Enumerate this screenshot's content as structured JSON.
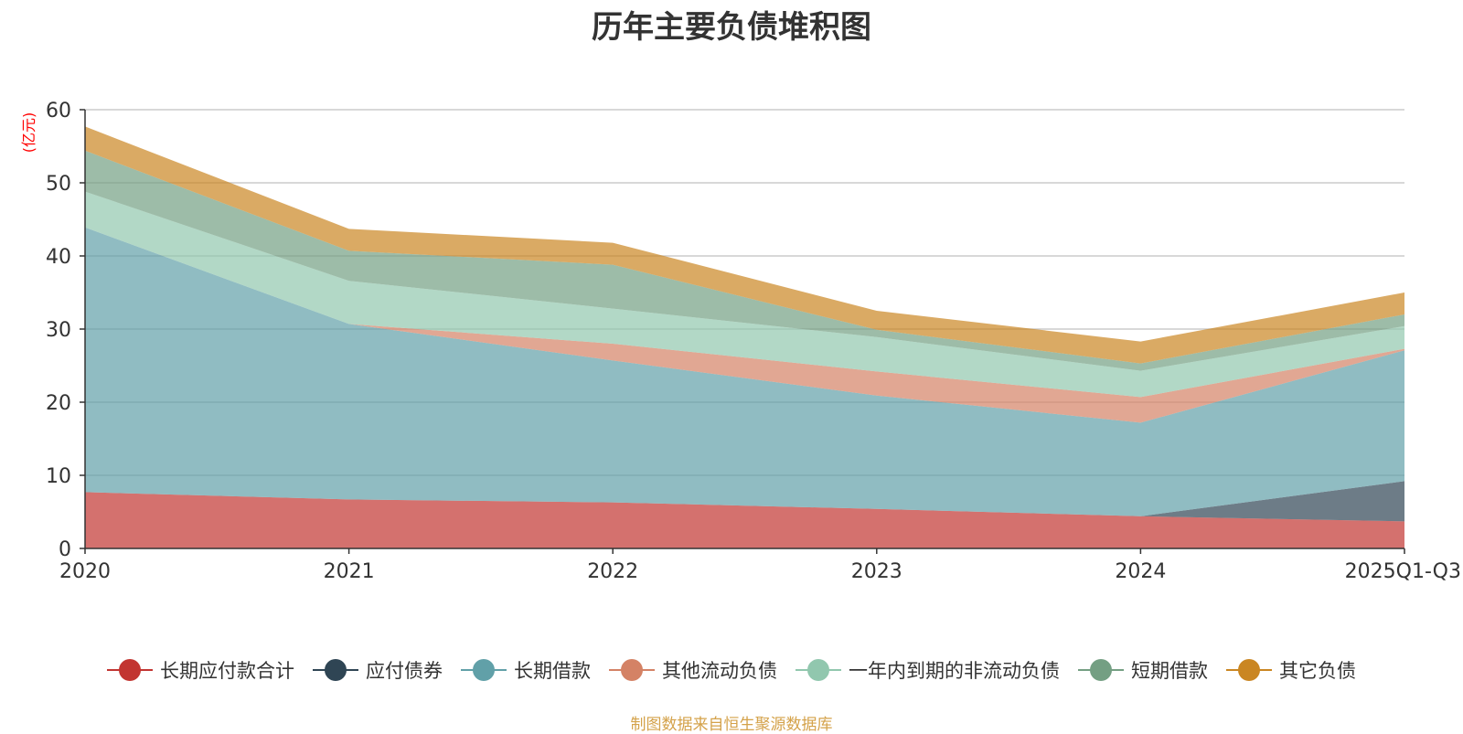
{
  "chart_data": {
    "type": "area",
    "stacked": true,
    "title": "历年主要负债堆积图",
    "ylabel": "(亿元)",
    "xlabel": "",
    "categories": [
      "2020",
      "2021",
      "2022",
      "2023",
      "2024",
      "2025Q1-Q3"
    ],
    "ylim": [
      0,
      60
    ],
    "yticks": [
      0,
      10,
      20,
      30,
      40,
      50,
      60
    ],
    "grid": true,
    "legend_position": "bottom",
    "series": [
      {
        "name": "长期应付款合计",
        "color": "#c23531",
        "values": [
          7.7,
          6.7,
          6.3,
          5.4,
          4.4,
          3.7
        ]
      },
      {
        "name": "应付债券",
        "color": "#2f4554",
        "values": [
          0,
          0,
          0,
          0,
          0,
          5.5
        ]
      },
      {
        "name": "长期借款",
        "color": "#61a0a8",
        "values": [
          36.2,
          24.0,
          19.4,
          15.5,
          12.8,
          17.9
        ]
      },
      {
        "name": "其他流动负债",
        "color": "#d48265",
        "values": [
          0,
          0,
          2.3,
          3.3,
          3.5,
          0.2
        ]
      },
      {
        "name": "一年内到期的非流动负债",
        "color": "#91c7ae",
        "values": [
          4.9,
          5.9,
          4.8,
          4.7,
          3.6,
          3.1
        ]
      },
      {
        "name": "短期借款",
        "color": "#749f83",
        "values": [
          5.6,
          4.1,
          6.0,
          1.0,
          1.0,
          1.6
        ]
      },
      {
        "name": "其它负债",
        "color": "#ca8622",
        "values": [
          3.3,
          3.0,
          3.0,
          2.6,
          3.0,
          3.0
        ]
      }
    ]
  },
  "footer": {
    "source": "制图数据来自恒生聚源数据库"
  }
}
